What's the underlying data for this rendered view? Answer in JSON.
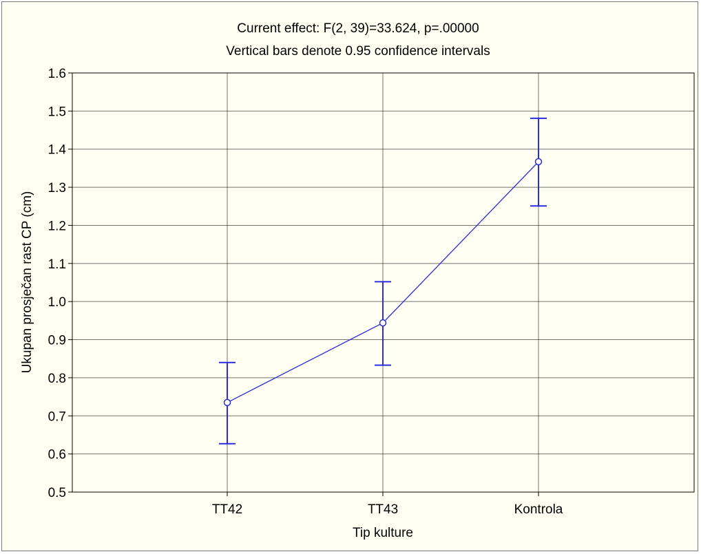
{
  "chart_data": {
    "type": "line",
    "title": "Current effect: F(2, 39)=33.624, p=.00000",
    "subtitle": "Vertical bars denote 0.95 confidence intervals",
    "xlabel": "Tip kulture",
    "ylabel": "Ukupan prosječan rast CP (cm)",
    "categories": [
      "TT42",
      "TT43",
      "Kontrola"
    ],
    "series": [
      {
        "values": [
          0.735,
          0.944,
          1.367
        ],
        "ci_lower": [
          0.627,
          0.833,
          1.251
        ],
        "ci_upper": [
          0.84,
          1.052,
          1.481
        ],
        "color": "#2a2ae0"
      }
    ],
    "ylim": [
      0.5,
      1.6
    ],
    "yticks": [
      "0.5",
      "0.6",
      "0.7",
      "0.8",
      "0.9",
      "1.0",
      "1.1",
      "1.2",
      "1.3",
      "1.4",
      "1.5",
      "1.6"
    ],
    "grid": true,
    "legend": "none"
  }
}
